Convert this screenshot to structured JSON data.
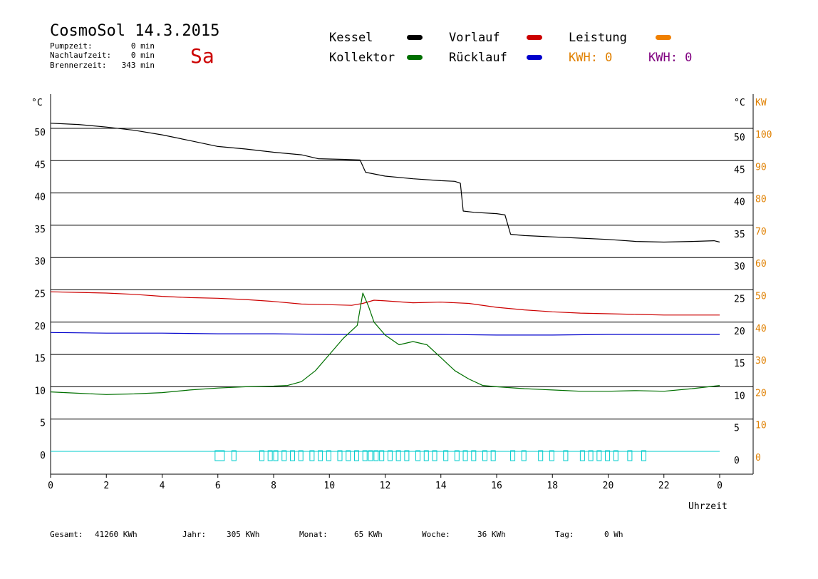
{
  "header": {
    "title": "CosmoSol 14.3.2015",
    "day": "Sa",
    "stats": [
      {
        "label": "Pumpzeit:",
        "value": "0 min"
      },
      {
        "label": "Nachlaufzeit:",
        "value": "0 min"
      },
      {
        "label": "Brennerzeit:",
        "value": "343 min"
      }
    ]
  },
  "legend": {
    "kessel": "Kessel",
    "kollektor": "Kollektor",
    "vorlauf": "Vorlauf",
    "ruecklauf": "Rücklauf",
    "leistung": "Leistung",
    "kwh1": "KWH: 0",
    "kwh2": "KWH: 0"
  },
  "colors": {
    "kessel": "#000000",
    "kollektor": "#007000",
    "vorlauf": "#cc0000",
    "ruecklauf": "#0000cc",
    "leistung": "#f08000",
    "kwh2": "#800080",
    "zero_line": "#00cccc",
    "axis_right_kw": "#e08000"
  },
  "footer": {
    "gesamt_label": "Gesamt:",
    "gesamt_value": "41260 KWh",
    "jahr_label": "Jahr:",
    "jahr_value": "305 KWh",
    "monat_label": "Monat:",
    "monat_value": "65 KWh",
    "woche_label": "Woche:",
    "woche_value": "36 KWh",
    "tag_label": "Tag:",
    "tag_value": "0 Wh"
  },
  "chart_data": {
    "type": "line",
    "xlabel": "Uhrzeit",
    "ylabel_left": "°C",
    "ylabel_right": "°C",
    "ylabel_right2": "KW",
    "xlim": [
      0,
      24
    ],
    "ylim": [
      0,
      50
    ],
    "ylim_kw": [
      0,
      100
    ],
    "grid": true,
    "x_ticks": [
      "0",
      "2",
      "4",
      "6",
      "8",
      "10",
      "12",
      "14",
      "16",
      "18",
      "20",
      "22",
      "0"
    ],
    "y_ticks": [
      0,
      5,
      10,
      15,
      20,
      25,
      30,
      35,
      40,
      45,
      50
    ],
    "y_ticks_kw": [
      0,
      10,
      20,
      30,
      40,
      50,
      60,
      70,
      80,
      90,
      100
    ],
    "series": [
      {
        "name": "Kessel",
        "color": "#000000",
        "points": [
          [
            0,
            50.8
          ],
          [
            1,
            50.6
          ],
          [
            2,
            50.2
          ],
          [
            3,
            49.7
          ],
          [
            4,
            49.0
          ],
          [
            5,
            48.1
          ],
          [
            6,
            47.2
          ],
          [
            7,
            46.8
          ],
          [
            8,
            46.3
          ],
          [
            9,
            45.9
          ],
          [
            9.6,
            45.3
          ],
          [
            10.5,
            45.2
          ],
          [
            11.1,
            45.1
          ],
          [
            11.3,
            43.2
          ],
          [
            12,
            42.6
          ],
          [
            13,
            42.2
          ],
          [
            14,
            41.9
          ],
          [
            14.5,
            41.8
          ],
          [
            14.7,
            41.5
          ],
          [
            14.8,
            37.2
          ],
          [
            15.2,
            37.0
          ],
          [
            16,
            36.8
          ],
          [
            16.3,
            36.6
          ],
          [
            16.5,
            33.6
          ],
          [
            17,
            33.4
          ],
          [
            18,
            33.2
          ],
          [
            19,
            33.0
          ],
          [
            20,
            32.8
          ],
          [
            21,
            32.5
          ],
          [
            22,
            32.4
          ],
          [
            23,
            32.5
          ],
          [
            23.8,
            32.6
          ],
          [
            24,
            32.4
          ]
        ]
      },
      {
        "name": "Vorlauf",
        "color": "#cc0000",
        "points": [
          [
            0,
            24.7
          ],
          [
            1,
            24.6
          ],
          [
            2,
            24.5
          ],
          [
            3,
            24.3
          ],
          [
            4,
            24.0
          ],
          [
            5,
            23.8
          ],
          [
            6,
            23.7
          ],
          [
            7,
            23.5
          ],
          [
            8,
            23.2
          ],
          [
            9,
            22.8
          ],
          [
            10,
            22.7
          ],
          [
            10.8,
            22.6
          ],
          [
            11.2,
            22.9
          ],
          [
            11.6,
            23.4
          ],
          [
            12,
            23.3
          ],
          [
            13,
            23.0
          ],
          [
            14,
            23.1
          ],
          [
            15,
            22.9
          ],
          [
            16,
            22.3
          ],
          [
            17,
            21.9
          ],
          [
            18,
            21.6
          ],
          [
            19,
            21.4
          ],
          [
            20,
            21.3
          ],
          [
            21,
            21.2
          ],
          [
            22,
            21.1
          ],
          [
            23,
            21.1
          ],
          [
            24,
            21.1
          ]
        ]
      },
      {
        "name": "Rücklauf",
        "color": "#0000cc",
        "points": [
          [
            0,
            18.4
          ],
          [
            2,
            18.3
          ],
          [
            4,
            18.3
          ],
          [
            6,
            18.2
          ],
          [
            8,
            18.2
          ],
          [
            10,
            18.1
          ],
          [
            12,
            18.1
          ],
          [
            14,
            18.1
          ],
          [
            16,
            18.0
          ],
          [
            18,
            18.0
          ],
          [
            20,
            18.1
          ],
          [
            22,
            18.1
          ],
          [
            24,
            18.1
          ]
        ]
      },
      {
        "name": "Kollektor",
        "color": "#007000",
        "points": [
          [
            0,
            9.2
          ],
          [
            1,
            9.0
          ],
          [
            2,
            8.8
          ],
          [
            3,
            8.9
          ],
          [
            4,
            9.1
          ],
          [
            5,
            9.5
          ],
          [
            6,
            9.8
          ],
          [
            7,
            10.0
          ],
          [
            8,
            10.1
          ],
          [
            8.5,
            10.2
          ],
          [
            9,
            10.8
          ],
          [
            9.5,
            12.5
          ],
          [
            10,
            15.0
          ],
          [
            10.5,
            17.5
          ],
          [
            11,
            19.5
          ],
          [
            11.2,
            24.5
          ],
          [
            11.4,
            22.5
          ],
          [
            11.6,
            20.0
          ],
          [
            12,
            18.0
          ],
          [
            12.5,
            16.5
          ],
          [
            13,
            17.0
          ],
          [
            13.5,
            16.5
          ],
          [
            14,
            14.5
          ],
          [
            14.5,
            12.5
          ],
          [
            15,
            11.2
          ],
          [
            15.5,
            10.2
          ],
          [
            16,
            10.0
          ],
          [
            17,
            9.7
          ],
          [
            18,
            9.5
          ],
          [
            19,
            9.3
          ],
          [
            20,
            9.3
          ],
          [
            21,
            9.4
          ],
          [
            22,
            9.3
          ],
          [
            23,
            9.7
          ],
          [
            24,
            10.2
          ]
        ]
      }
    ],
    "leistung_points": [
      [
        0,
        0
      ],
      [
        24,
        0
      ]
    ]
  }
}
